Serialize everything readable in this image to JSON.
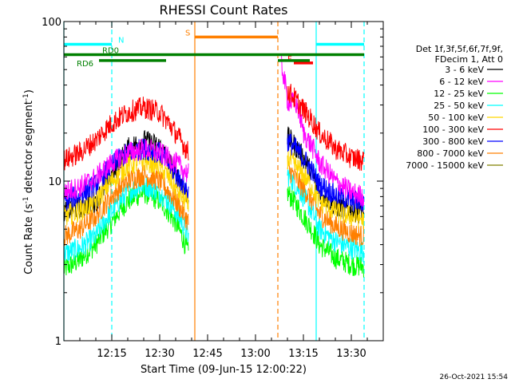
{
  "chart_data": {
    "type": "line",
    "title": "RHESSI Count Rates",
    "xlabel": "Start Time (09-Jun-15 12:00:22)",
    "ylabel_main": "Count Rate (s",
    "ylabel_sup1": "-1",
    "ylabel_mid": " detector segment",
    "ylabel_sup2": "-1",
    "ylabel_end": ")",
    "y_scale": "log",
    "ylim": [
      1,
      100
    ],
    "xlim_min": [
      0,
      100
    ],
    "y_ticks": [
      {
        "value": 1,
        "label": "1"
      },
      {
        "value": 10,
        "label": "10"
      },
      {
        "value": 100,
        "label": "100"
      }
    ],
    "x_ticks": [
      {
        "value": 15,
        "label": "12:15"
      },
      {
        "value": 30,
        "label": "12:30"
      },
      {
        "value": 45,
        "label": "12:45"
      },
      {
        "value": 60,
        "label": "13:00"
      },
      {
        "value": 75,
        "label": "13:15"
      },
      {
        "value": 90,
        "label": "13:30"
      }
    ],
    "legend_title": [
      "Det 1f,3f,5f,6f,7f,9f,",
      "FDecim 1, Att 0"
    ],
    "series": [
      {
        "name": "3 - 6 keV",
        "color": "#000000",
        "x": [
          0,
          5,
          10,
          15,
          20,
          25,
          30,
          35,
          39,
          70,
          75,
          80,
          85,
          90,
          94
        ],
        "y": [
          6.5,
          6.8,
          7.5,
          10.5,
          16,
          18,
          16.5,
          11,
          8.0,
          19,
          14,
          8.5,
          7,
          6.5,
          6.3
        ]
      },
      {
        "name": "6 - 12 keV",
        "color": "#ff00ff",
        "x": [
          0,
          5,
          10,
          15,
          20,
          25,
          30,
          35,
          39,
          68,
          70,
          73,
          75,
          78,
          80,
          85,
          90,
          94
        ],
        "y": [
          8.5,
          9.2,
          10.5,
          13,
          15,
          16,
          15,
          13,
          11,
          55,
          32,
          30,
          20,
          16,
          13,
          10,
          8.5,
          8.0
        ]
      },
      {
        "name": "12 - 25 keV",
        "color": "#00ff00",
        "x": [
          0,
          5,
          10,
          15,
          20,
          25,
          30,
          35,
          39,
          70,
          75,
          80,
          85,
          90,
          94
        ],
        "y": [
          2.8,
          3.2,
          4.0,
          5.5,
          7.5,
          8.5,
          7.5,
          5.5,
          3.5,
          8.5,
          6.0,
          4.0,
          3.3,
          3.0,
          2.9
        ]
      },
      {
        "name": "25 - 50 keV",
        "color": "#00ffff",
        "x": [
          0,
          5,
          10,
          15,
          20,
          25,
          30,
          35,
          39,
          70,
          75,
          80,
          85,
          90,
          94
        ],
        "y": [
          3.5,
          3.8,
          4.5,
          6.5,
          8.5,
          9.5,
          8.5,
          6.5,
          4.5,
          11,
          8,
          5,
          4.2,
          3.8,
          3.6
        ]
      },
      {
        "name": "50 - 100 keV",
        "color": "#ffd700",
        "x": [
          0,
          5,
          10,
          15,
          20,
          25,
          30,
          35,
          39,
          70,
          75,
          80,
          85,
          90,
          94
        ],
        "y": [
          6,
          6.5,
          7.5,
          10,
          12.5,
          13.5,
          12.5,
          9,
          7,
          14,
          11,
          7.5,
          6.5,
          6,
          5.8
        ]
      },
      {
        "name": "100 - 300 keV",
        "color": "#ff0000",
        "x": [
          0,
          5,
          10,
          15,
          20,
          25,
          30,
          35,
          39,
          70,
          75,
          80,
          85,
          90,
          94
        ],
        "y": [
          13.5,
          15,
          18,
          23,
          27,
          29,
          27,
          20,
          15,
          37,
          28,
          20,
          16,
          14,
          13.5
        ]
      },
      {
        "name": "300 - 800 keV",
        "color": "#0000ff",
        "x": [
          0,
          5,
          10,
          15,
          20,
          25,
          30,
          35,
          39,
          70,
          75,
          80,
          85,
          90,
          94
        ],
        "y": [
          7.5,
          8.2,
          9.5,
          12.5,
          15,
          16,
          15,
          11,
          8.5,
          18,
          14,
          9.5,
          8.2,
          7.6,
          7.3
        ]
      },
      {
        "name": "800 - 7000 keV",
        "color": "#ff8000",
        "x": [
          0,
          5,
          10,
          15,
          20,
          25,
          30,
          35,
          39,
          70,
          75,
          80,
          85,
          90,
          94
        ],
        "y": [
          4.5,
          5.0,
          6.0,
          8.0,
          10,
          11,
          10,
          7.5,
          5.5,
          12,
          9,
          6.2,
          5.2,
          4.7,
          4.5
        ]
      },
      {
        "name": "7000 - 15000 keV",
        "color": "#808000",
        "x": [],
        "y": []
      }
    ],
    "vertical_lines": [
      {
        "x": 0,
        "color": "#00ffff",
        "style": "solid"
      },
      {
        "x": 15,
        "color": "#00ffff",
        "style": "dashed"
      },
      {
        "x": 41,
        "color": "#ff8000",
        "style": "solid"
      },
      {
        "x": 67,
        "color": "#ff8000",
        "style": "dashed"
      },
      {
        "x": 79,
        "color": "#00ffff",
        "style": "solid"
      },
      {
        "x": 94,
        "color": "#00ffff",
        "style": "dashed"
      }
    ],
    "flag_bars": [
      {
        "label": "N",
        "color": "#00ffff",
        "y": 72,
        "segments": [
          [
            0,
            15
          ],
          [
            79,
            94
          ]
        ],
        "label_x": 17
      },
      {
        "label": "S",
        "color": "#ff8000",
        "y": 80,
        "segments": [
          [
            41,
            67
          ]
        ],
        "label_x": 38
      },
      {
        "label": "F",
        "color": "#ff0000",
        "y": 55,
        "segments": [
          [
            72,
            78
          ]
        ],
        "label_x": 70
      },
      {
        "label": "RD0",
        "color": "#008000",
        "y": 62,
        "segments": [
          [
            0,
            15
          ],
          [
            15,
            67
          ],
          [
            67,
            94
          ]
        ],
        "label_x": 12
      },
      {
        "label": "RD6",
        "color": "#008000",
        "y": 57,
        "segments": [
          [
            11,
            32
          ],
          [
            67,
            77
          ]
        ],
        "label_x": 4
      }
    ],
    "footer_timestamp": "26-Oct-2021 15:54"
  }
}
